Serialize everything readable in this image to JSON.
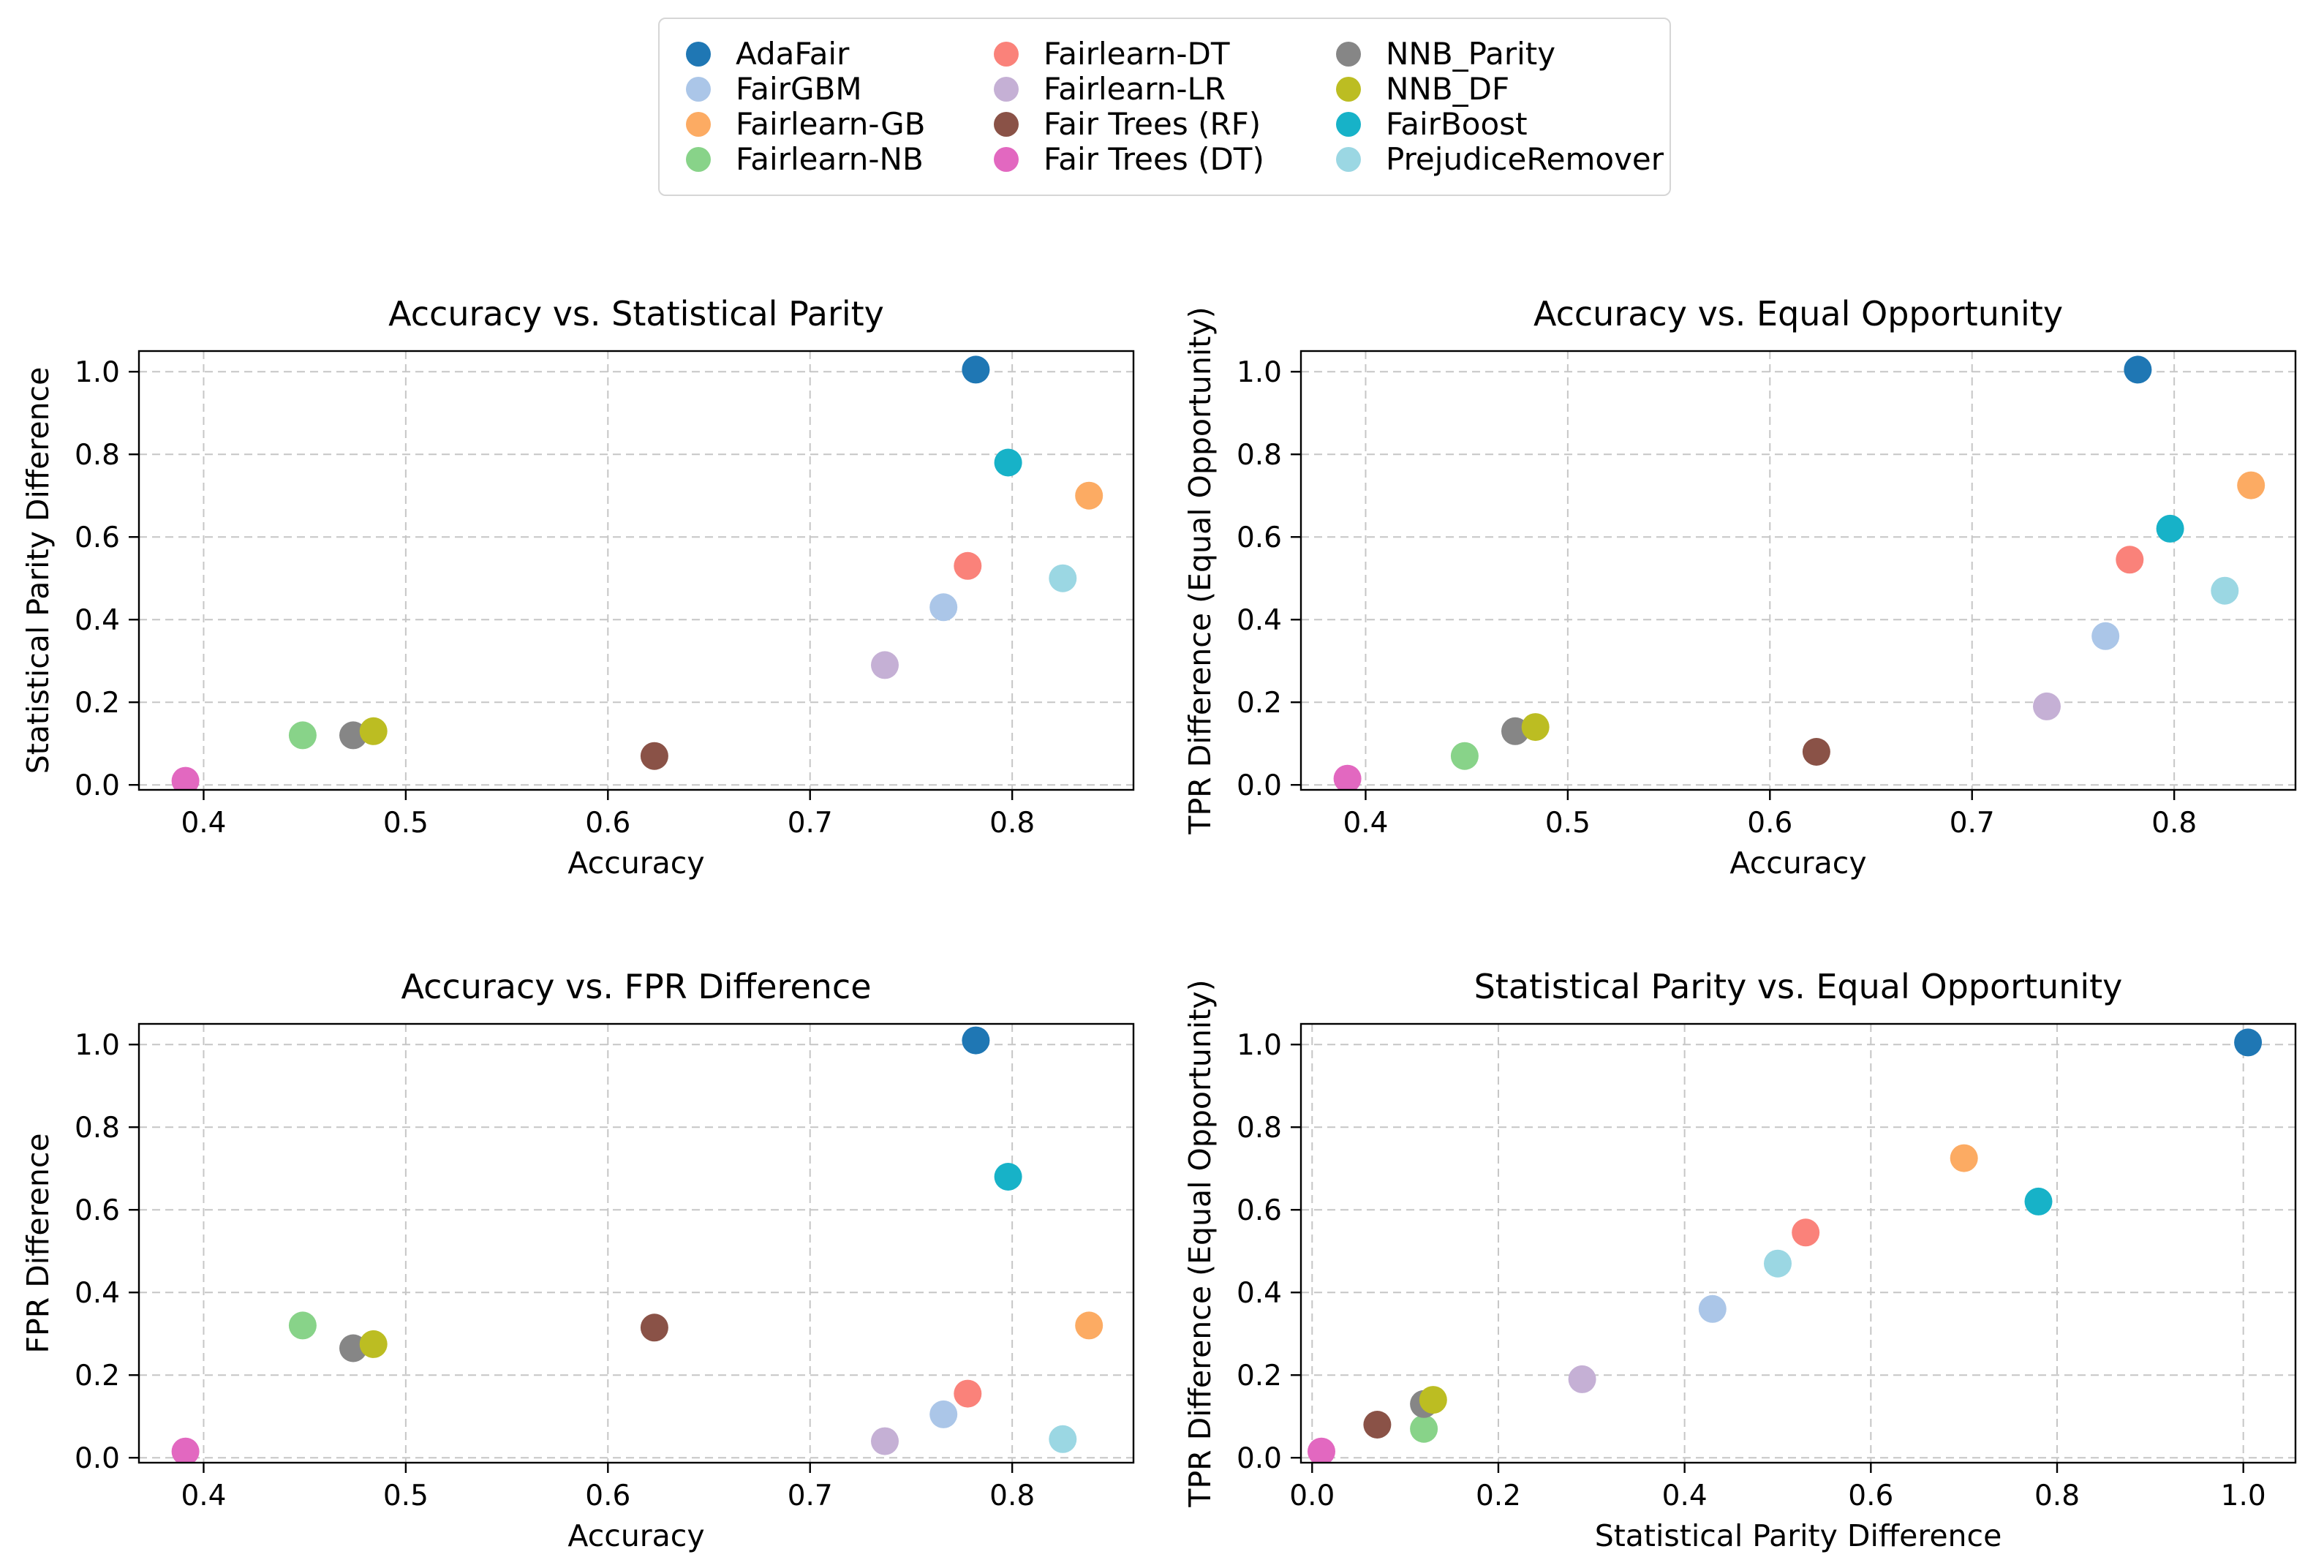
{
  "figure": {
    "background": "#ffffff",
    "text_color": "#000000",
    "grid_color": "#c6c6c6",
    "axis_color": "#000000"
  },
  "palette": {
    "AdaFair": "#1f77b4",
    "FairGBM": "#abc6e8",
    "Fairlearn-GB": "#fcab63",
    "Fairlearn-NB": "#88d389",
    "Fairlearn-DT": "#fa827a",
    "Fairlearn-LR": "#c5b0d5",
    "Fair Trees (RF)": "#8a5247",
    "Fair Trees (DT)": "#e268c0",
    "NNB_Parity": "#868686",
    "NNB_DF": "#bcbd22",
    "FairBoost": "#17b2c8",
    "PrejudiceRemover": "#9bd7e3"
  },
  "legend": {
    "labels": [
      "AdaFair",
      "FairGBM",
      "Fairlearn-GB",
      "Fairlearn-NB",
      "Fairlearn-DT",
      "Fairlearn-LR",
      "Fair Trees (RF)",
      "Fair Trees (DT)",
      "NNB_Parity",
      "NNB_DF",
      "FairBoost",
      "PrejudiceRemover"
    ]
  },
  "chart_data": [
    {
      "type": "scatter",
      "title": "Accuracy vs. Statistical Parity",
      "xlabel": "Accuracy",
      "ylabel": "Statistical Parity Difference",
      "xlim": [
        0.368,
        0.86
      ],
      "ylim": [
        -0.012,
        1.05
      ],
      "xticks": [
        0.4,
        0.5,
        0.6,
        0.7,
        0.8
      ],
      "yticks": [
        0.0,
        0.2,
        0.4,
        0.6,
        0.8,
        1.0
      ],
      "grid": true,
      "points": [
        {
          "name": "AdaFair",
          "x": 0.782,
          "y": 1.005
        },
        {
          "name": "FairGBM",
          "x": 0.766,
          "y": 0.43
        },
        {
          "name": "Fairlearn-GB",
          "x": 0.838,
          "y": 0.7
        },
        {
          "name": "Fairlearn-NB",
          "x": 0.449,
          "y": 0.12
        },
        {
          "name": "Fairlearn-DT",
          "x": 0.778,
          "y": 0.53
        },
        {
          "name": "Fairlearn-LR",
          "x": 0.737,
          "y": 0.29
        },
        {
          "name": "Fair Trees (RF)",
          "x": 0.623,
          "y": 0.07
        },
        {
          "name": "Fair Trees (DT)",
          "x": 0.391,
          "y": 0.01
        },
        {
          "name": "NNB_Parity",
          "x": 0.474,
          "y": 0.12
        },
        {
          "name": "NNB_DF",
          "x": 0.484,
          "y": 0.13
        },
        {
          "name": "FairBoost",
          "x": 0.798,
          "y": 0.78
        },
        {
          "name": "PrejudiceRemover",
          "x": 0.825,
          "y": 0.5
        }
      ]
    },
    {
      "type": "scatter",
      "title": "Accuracy vs. Equal Opportunity",
      "xlabel": "Accuracy",
      "ylabel": "TPR Difference (Equal Opportunity)",
      "xlim": [
        0.368,
        0.86
      ],
      "ylim": [
        -0.012,
        1.05
      ],
      "xticks": [
        0.4,
        0.5,
        0.6,
        0.7,
        0.8
      ],
      "yticks": [
        0.0,
        0.2,
        0.4,
        0.6,
        0.8,
        1.0
      ],
      "grid": true,
      "points": [
        {
          "name": "AdaFair",
          "x": 0.782,
          "y": 1.005
        },
        {
          "name": "FairGBM",
          "x": 0.766,
          "y": 0.36
        },
        {
          "name": "Fairlearn-GB",
          "x": 0.838,
          "y": 0.725
        },
        {
          "name": "Fairlearn-NB",
          "x": 0.449,
          "y": 0.07
        },
        {
          "name": "Fairlearn-DT",
          "x": 0.778,
          "y": 0.545
        },
        {
          "name": "Fairlearn-LR",
          "x": 0.737,
          "y": 0.19
        },
        {
          "name": "Fair Trees (RF)",
          "x": 0.623,
          "y": 0.08
        },
        {
          "name": "Fair Trees (DT)",
          "x": 0.391,
          "y": 0.015
        },
        {
          "name": "NNB_Parity",
          "x": 0.474,
          "y": 0.13
        },
        {
          "name": "NNB_DF",
          "x": 0.484,
          "y": 0.14
        },
        {
          "name": "FairBoost",
          "x": 0.798,
          "y": 0.62
        },
        {
          "name": "PrejudiceRemover",
          "x": 0.825,
          "y": 0.47
        }
      ]
    },
    {
      "type": "scatter",
      "title": "Accuracy vs. FPR Difference",
      "xlabel": "Accuracy",
      "ylabel": "FPR Difference",
      "xlim": [
        0.368,
        0.86
      ],
      "ylim": [
        -0.012,
        1.05
      ],
      "xticks": [
        0.4,
        0.5,
        0.6,
        0.7,
        0.8
      ],
      "yticks": [
        0.0,
        0.2,
        0.4,
        0.6,
        0.8,
        1.0
      ],
      "grid": true,
      "points": [
        {
          "name": "AdaFair",
          "x": 0.782,
          "y": 1.01
        },
        {
          "name": "FairGBM",
          "x": 0.766,
          "y": 0.105
        },
        {
          "name": "Fairlearn-GB",
          "x": 0.838,
          "y": 0.32
        },
        {
          "name": "Fairlearn-NB",
          "x": 0.449,
          "y": 0.32
        },
        {
          "name": "Fairlearn-DT",
          "x": 0.778,
          "y": 0.155
        },
        {
          "name": "Fairlearn-LR",
          "x": 0.737,
          "y": 0.04
        },
        {
          "name": "Fair Trees (RF)",
          "x": 0.623,
          "y": 0.315
        },
        {
          "name": "Fair Trees (DT)",
          "x": 0.391,
          "y": 0.015
        },
        {
          "name": "NNB_Parity",
          "x": 0.474,
          "y": 0.265
        },
        {
          "name": "NNB_DF",
          "x": 0.484,
          "y": 0.275
        },
        {
          "name": "FairBoost",
          "x": 0.798,
          "y": 0.68
        },
        {
          "name": "PrejudiceRemover",
          "x": 0.825,
          "y": 0.045
        }
      ]
    },
    {
      "type": "scatter",
      "title": "Statistical Parity vs. Equal Opportunity",
      "xlabel": "Statistical Parity Difference",
      "ylabel": "TPR Difference (Equal Opportunity)",
      "xlim": [
        -0.012,
        1.056
      ],
      "ylim": [
        -0.012,
        1.05
      ],
      "xticks": [
        0.0,
        0.2,
        0.4,
        0.6,
        0.8,
        1.0
      ],
      "yticks": [
        0.0,
        0.2,
        0.4,
        0.6,
        0.8,
        1.0
      ],
      "grid": true,
      "points": [
        {
          "name": "AdaFair",
          "x": 1.005,
          "y": 1.005
        },
        {
          "name": "FairGBM",
          "x": 0.43,
          "y": 0.36
        },
        {
          "name": "Fairlearn-GB",
          "x": 0.7,
          "y": 0.725
        },
        {
          "name": "Fairlearn-NB",
          "x": 0.12,
          "y": 0.07
        },
        {
          "name": "Fairlearn-DT",
          "x": 0.53,
          "y": 0.545
        },
        {
          "name": "Fairlearn-LR",
          "x": 0.29,
          "y": 0.19
        },
        {
          "name": "Fair Trees (RF)",
          "x": 0.07,
          "y": 0.08
        },
        {
          "name": "Fair Trees (DT)",
          "x": 0.01,
          "y": 0.015
        },
        {
          "name": "NNB_Parity",
          "x": 0.12,
          "y": 0.13
        },
        {
          "name": "NNB_DF",
          "x": 0.13,
          "y": 0.14
        },
        {
          "name": "FairBoost",
          "x": 0.78,
          "y": 0.62
        },
        {
          "name": "PrejudiceRemover",
          "x": 0.5,
          "y": 0.47
        }
      ]
    }
  ]
}
